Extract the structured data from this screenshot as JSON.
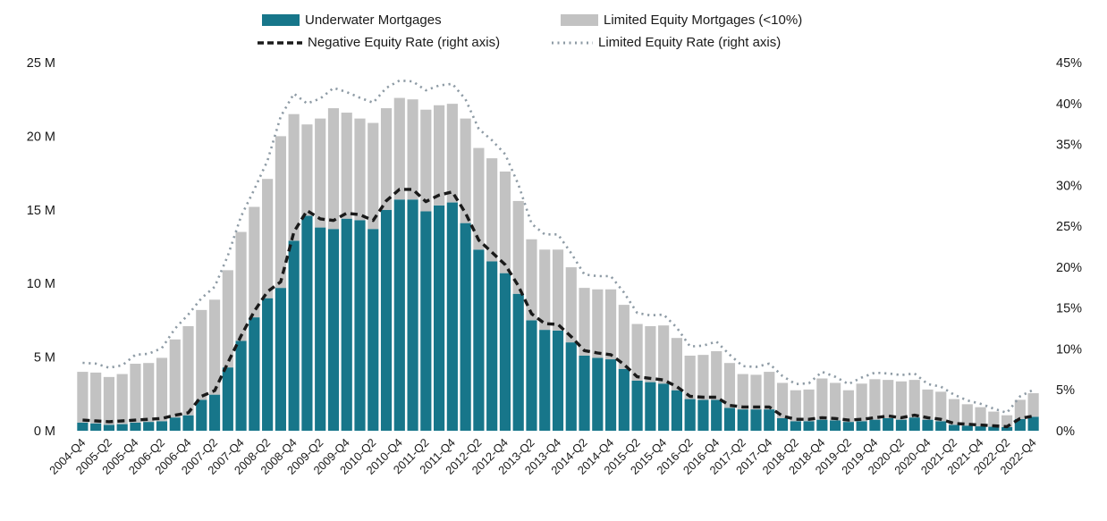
{
  "chart_data": {
    "type": "bar",
    "subtype": "stacked-bars-with-two-lines",
    "title": "",
    "grid": false,
    "background": "#ffffff",
    "legend_position": "top-center",
    "colors": {
      "underwater_bar": "#17768a",
      "limited_equity_bar": "#c2c2c2",
      "negative_equity_line": "#1a1a1a",
      "limited_equity_line": "#8e9ba5",
      "axis_text": "#1a1a1a"
    },
    "left_axis": {
      "unit": "millions",
      "min": 0,
      "max": 25,
      "ticks": [
        "0 M",
        "5 M",
        "10 M",
        "15 M",
        "20 M",
        "25 M"
      ]
    },
    "right_axis": {
      "unit": "percent",
      "min": 0,
      "max": 45,
      "ticks": [
        "0%",
        "5%",
        "10%",
        "15%",
        "20%",
        "25%",
        "30%",
        "35%",
        "40%",
        "45%"
      ]
    },
    "categories": [
      "2004-Q4",
      "2005-Q1",
      "2005-Q2",
      "2005-Q3",
      "2005-Q4",
      "2006-Q1",
      "2006-Q2",
      "2006-Q3",
      "2006-Q4",
      "2007-Q1",
      "2007-Q2",
      "2007-Q3",
      "2007-Q4",
      "2008-Q1",
      "2008-Q2",
      "2008-Q3",
      "2008-Q4",
      "2009-Q1",
      "2009-Q2",
      "2009-Q3",
      "2009-Q4",
      "2010-Q1",
      "2010-Q2",
      "2010-Q3",
      "2010-Q4",
      "2011-Q1",
      "2011-Q2",
      "2011-Q3",
      "2011-Q4",
      "2012-Q1",
      "2012-Q2",
      "2012-Q3",
      "2012-Q4",
      "2013-Q1",
      "2013-Q2",
      "2013-Q3",
      "2013-Q4",
      "2014-Q1",
      "2014-Q2",
      "2014-Q3",
      "2014-Q4",
      "2015-Q1",
      "2015-Q2",
      "2015-Q3",
      "2015-Q4",
      "2016-Q1",
      "2016-Q2",
      "2016-Q3",
      "2016-Q4",
      "2017-Q1",
      "2017-Q2",
      "2017-Q3",
      "2017-Q4",
      "2018-Q1",
      "2018-Q2",
      "2018-Q3",
      "2018-Q4",
      "2019-Q1",
      "2019-Q2",
      "2019-Q3",
      "2019-Q4",
      "2020-Q1",
      "2020-Q2",
      "2020-Q3",
      "2020-Q4",
      "2021-Q1",
      "2021-Q2",
      "2021-Q3",
      "2021-Q4",
      "2022-Q1",
      "2022-Q2",
      "2022-Q3",
      "2022-Q4"
    ],
    "x_tick_labels": [
      "2004-Q4",
      "2005-Q2",
      "2005-Q4",
      "2006-Q2",
      "2006-Q4",
      "2007-Q2",
      "2007-Q4",
      "2008-Q2",
      "2008-Q4",
      "2009-Q2",
      "2009-Q4",
      "2010-Q2",
      "2010-Q4",
      "2011-Q2",
      "2011-Q4",
      "2012-Q2",
      "2012-Q4",
      "2013-Q2",
      "2013-Q4",
      "2014-Q2",
      "2014-Q4",
      "2015-Q2",
      "2015-Q4",
      "2016-Q2",
      "2016-Q4",
      "2017-Q2",
      "2017-Q4",
      "2018-Q2",
      "2018-Q4",
      "2019-Q2",
      "2019-Q4",
      "2020-Q2",
      "2020-Q4",
      "2021-Q2",
      "2021-Q4",
      "2022-Q2",
      "2022-Q4"
    ],
    "series": [
      {
        "name": "Underwater Mortgages",
        "type": "bar",
        "stack": "mortgages",
        "axis": "left",
        "color": "#17768a",
        "values": [
          0.55,
          0.5,
          0.4,
          0.45,
          0.55,
          0.6,
          0.65,
          0.9,
          1.05,
          2.1,
          2.45,
          4.3,
          6.1,
          7.7,
          9.0,
          9.7,
          12.9,
          14.6,
          13.8,
          13.7,
          14.4,
          14.3,
          13.7,
          15.0,
          15.7,
          15.7,
          14.9,
          15.3,
          15.5,
          14.1,
          12.3,
          11.5,
          10.7,
          9.3,
          7.5,
          6.85,
          6.8,
          6.0,
          5.1,
          4.95,
          4.85,
          4.2,
          3.4,
          3.3,
          3.2,
          2.75,
          2.15,
          2.1,
          2.1,
          1.55,
          1.45,
          1.45,
          1.45,
          0.85,
          0.65,
          0.65,
          0.75,
          0.7,
          0.6,
          0.65,
          0.75,
          0.85,
          0.75,
          0.9,
          0.75,
          0.65,
          0.4,
          0.35,
          0.3,
          0.27,
          0.25,
          0.8,
          0.95
        ]
      },
      {
        "name": "Limited Equity Mortgages (<10%)",
        "type": "bar",
        "stack": "mortgages",
        "axis": "left",
        "color": "#c2c2c2",
        "values": [
          3.45,
          3.45,
          3.25,
          3.4,
          4.0,
          4.0,
          4.3,
          5.3,
          6.05,
          6.1,
          6.45,
          6.6,
          7.4,
          7.5,
          8.1,
          10.3,
          8.6,
          6.2,
          7.4,
          8.2,
          7.2,
          6.9,
          7.2,
          6.9,
          6.9,
          6.8,
          6.9,
          6.8,
          6.7,
          7.1,
          6.9,
          7.0,
          6.9,
          6.3,
          5.5,
          5.45,
          5.5,
          5.1,
          4.6,
          4.65,
          4.75,
          4.35,
          3.85,
          3.8,
          3.95,
          3.55,
          2.95,
          3.05,
          3.3,
          3.05,
          2.4,
          2.35,
          2.55,
          2.4,
          2.1,
          2.15,
          2.8,
          2.55,
          2.15,
          2.55,
          2.75,
          2.6,
          2.6,
          2.55,
          2.05,
          2.0,
          1.75,
          1.45,
          1.3,
          1.03,
          0.8,
          1.3,
          1.6
        ]
      },
      {
        "name": "Negative Equity Rate (right axis)",
        "type": "line",
        "dash": "dashed",
        "axis": "right",
        "color": "#1a1a1a",
        "values": [
          1.3,
          1.2,
          1.1,
          1.2,
          1.3,
          1.4,
          1.5,
          1.9,
          2.2,
          4.2,
          4.9,
          8.3,
          11.6,
          14.6,
          17.0,
          18.2,
          24.3,
          26.9,
          25.9,
          25.7,
          26.6,
          26.4,
          25.7,
          28.1,
          29.5,
          29.5,
          28.0,
          28.8,
          29.2,
          26.6,
          23.3,
          21.8,
          20.3,
          17.7,
          14.3,
          13.1,
          13.0,
          11.5,
          9.8,
          9.5,
          9.3,
          8.1,
          6.6,
          6.4,
          6.2,
          5.4,
          4.2,
          4.1,
          4.1,
          3.1,
          2.9,
          2.9,
          2.9,
          1.8,
          1.4,
          1.4,
          1.6,
          1.5,
          1.3,
          1.4,
          1.6,
          1.8,
          1.6,
          1.9,
          1.6,
          1.4,
          0.9,
          0.8,
          0.7,
          0.6,
          0.5,
          1.5,
          1.8
        ]
      },
      {
        "name": "Limited Equity Rate (right axis)",
        "type": "line",
        "dash": "dotted",
        "axis": "right",
        "color": "#8e9ba5",
        "values": [
          8.3,
          8.2,
          7.7,
          8.0,
          9.3,
          9.4,
          10.1,
          12.5,
          14.2,
          16.2,
          17.6,
          21.4,
          26.2,
          29.5,
          33.0,
          38.4,
          41.2,
          40.0,
          40.6,
          41.9,
          41.4,
          40.7,
          40.1,
          41.9,
          42.8,
          42.7,
          41.6,
          42.2,
          42.4,
          40.5,
          36.9,
          35.5,
          33.8,
          30.1,
          25.3,
          24.0,
          24.0,
          21.7,
          19.1,
          18.9,
          18.9,
          16.9,
          14.4,
          14.1,
          14.2,
          12.6,
          10.3,
          10.4,
          10.9,
          9.3,
          7.9,
          7.8,
          8.2,
          6.7,
          5.7,
          5.8,
          7.2,
          6.6,
          5.7,
          6.5,
          7.1,
          7.0,
          6.8,
          7.0,
          5.7,
          5.4,
          4.4,
          3.7,
          3.3,
          2.7,
          2.2,
          4.2,
          5.0
        ]
      }
    ]
  },
  "legend": {
    "underwater_label": "Underwater Mortgages",
    "limited_equity_label": "Limited Equity Mortgages (<10%)",
    "negative_rate_label": "Negative Equity Rate (right axis)",
    "limited_rate_label": "Limited Equity Rate (right axis)"
  }
}
